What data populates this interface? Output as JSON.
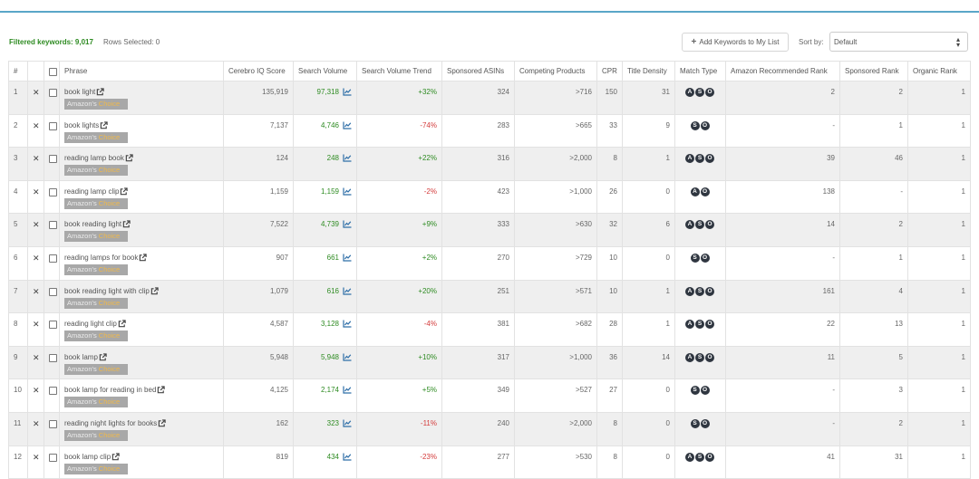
{
  "toolbar": {
    "filtered_label": "Filtered keywords: 9,017",
    "rows_selected": "Rows Selected: 0",
    "add_button": "Add Keywords to My List",
    "sort_label": "Sort by:",
    "sort_value": "Default"
  },
  "colors": {
    "accent_line": "#5aa6c8",
    "positive": "#2e8b22",
    "negative": "#d43c3c",
    "badge_bg": "#a8a8a8",
    "badge_choice": "#f0b94a",
    "match_type_badge": "#2f3640"
  },
  "icons": {
    "external_link": "external-link-icon",
    "trend": "line-chart-icon",
    "remove": "x-icon",
    "sort_caret": "sort-caret-icon"
  },
  "badge": {
    "prefix": "Amazon's",
    "suffix": "Choice"
  },
  "columns": [
    "#",
    "",
    "",
    "Phrase",
    "Cerebro IQ Score",
    "Search Volume",
    "Search Volume Trend",
    "Sponsored ASINs",
    "Competing Products",
    "CPR",
    "Title Density",
    "Match Type",
    "Amazon Recommended Rank",
    "Sponsored Rank",
    "Organic Rank"
  ],
  "rows": [
    {
      "n": "1",
      "phrase": "book light",
      "iq": "135,919",
      "sv": "97,318",
      "trend": "+32%",
      "asins": "324",
      "comp": ">716",
      "cpr": "150",
      "td": "31",
      "mt": [
        "A",
        "S",
        "O"
      ],
      "arr": "2",
      "sr": "2",
      "or": "1"
    },
    {
      "n": "2",
      "phrase": "book lights",
      "iq": "7,137",
      "sv": "4,746",
      "trend": "-74%",
      "asins": "283",
      "comp": ">665",
      "cpr": "33",
      "td": "9",
      "mt": [
        "S",
        "O"
      ],
      "arr": "-",
      "sr": "1",
      "or": "1"
    },
    {
      "n": "3",
      "phrase": "reading lamp book",
      "iq": "124",
      "sv": "248",
      "trend": "+22%",
      "asins": "316",
      "comp": ">2,000",
      "cpr": "8",
      "td": "1",
      "mt": [
        "A",
        "S",
        "O"
      ],
      "arr": "39",
      "sr": "46",
      "or": "1"
    },
    {
      "n": "4",
      "phrase": "reading lamp clip",
      "iq": "1,159",
      "sv": "1,159",
      "trend": "-2%",
      "asins": "423",
      "comp": ">1,000",
      "cpr": "26",
      "td": "0",
      "mt": [
        "A",
        "O"
      ],
      "arr": "138",
      "sr": "-",
      "or": "1"
    },
    {
      "n": "5",
      "phrase": "book reading light",
      "iq": "7,522",
      "sv": "4,739",
      "trend": "+9%",
      "asins": "333",
      "comp": ">630",
      "cpr": "32",
      "td": "6",
      "mt": [
        "A",
        "S",
        "O"
      ],
      "arr": "14",
      "sr": "2",
      "or": "1"
    },
    {
      "n": "6",
      "phrase": "reading lamps for book",
      "iq": "907",
      "sv": "661",
      "trend": "+2%",
      "asins": "270",
      "comp": ">729",
      "cpr": "10",
      "td": "0",
      "mt": [
        "S",
        "O"
      ],
      "arr": "-",
      "sr": "1",
      "or": "1"
    },
    {
      "n": "7",
      "phrase": "book reading light with clip",
      "iq": "1,079",
      "sv": "616",
      "trend": "+20%",
      "asins": "251",
      "comp": ">571",
      "cpr": "10",
      "td": "1",
      "mt": [
        "A",
        "S",
        "O"
      ],
      "arr": "161",
      "sr": "4",
      "or": "1"
    },
    {
      "n": "8",
      "phrase": "reading light clip",
      "iq": "4,587",
      "sv": "3,128",
      "trend": "-4%",
      "asins": "381",
      "comp": ">682",
      "cpr": "28",
      "td": "1",
      "mt": [
        "A",
        "S",
        "O"
      ],
      "arr": "22",
      "sr": "13",
      "or": "1"
    },
    {
      "n": "9",
      "phrase": "book lamp",
      "iq": "5,948",
      "sv": "5,948",
      "trend": "+10%",
      "asins": "317",
      "comp": ">1,000",
      "cpr": "36",
      "td": "14",
      "mt": [
        "A",
        "S",
        "O"
      ],
      "arr": "11",
      "sr": "5",
      "or": "1"
    },
    {
      "n": "10",
      "phrase": "book lamp for reading in bed",
      "iq": "4,125",
      "sv": "2,174",
      "trend": "+5%",
      "asins": "349",
      "comp": ">527",
      "cpr": "27",
      "td": "0",
      "mt": [
        "S",
        "O"
      ],
      "arr": "-",
      "sr": "3",
      "or": "1"
    },
    {
      "n": "11",
      "phrase": "reading night lights for books",
      "iq": "162",
      "sv": "323",
      "trend": "-11%",
      "asins": "240",
      "comp": ">2,000",
      "cpr": "8",
      "td": "0",
      "mt": [
        "S",
        "O"
      ],
      "arr": "-",
      "sr": "2",
      "or": "1"
    },
    {
      "n": "12",
      "phrase": "book lamp clip",
      "iq": "819",
      "sv": "434",
      "trend": "-23%",
      "asins": "277",
      "comp": ">530",
      "cpr": "8",
      "td": "0",
      "mt": [
        "A",
        "S",
        "O"
      ],
      "arr": "41",
      "sr": "31",
      "or": "1"
    }
  ]
}
